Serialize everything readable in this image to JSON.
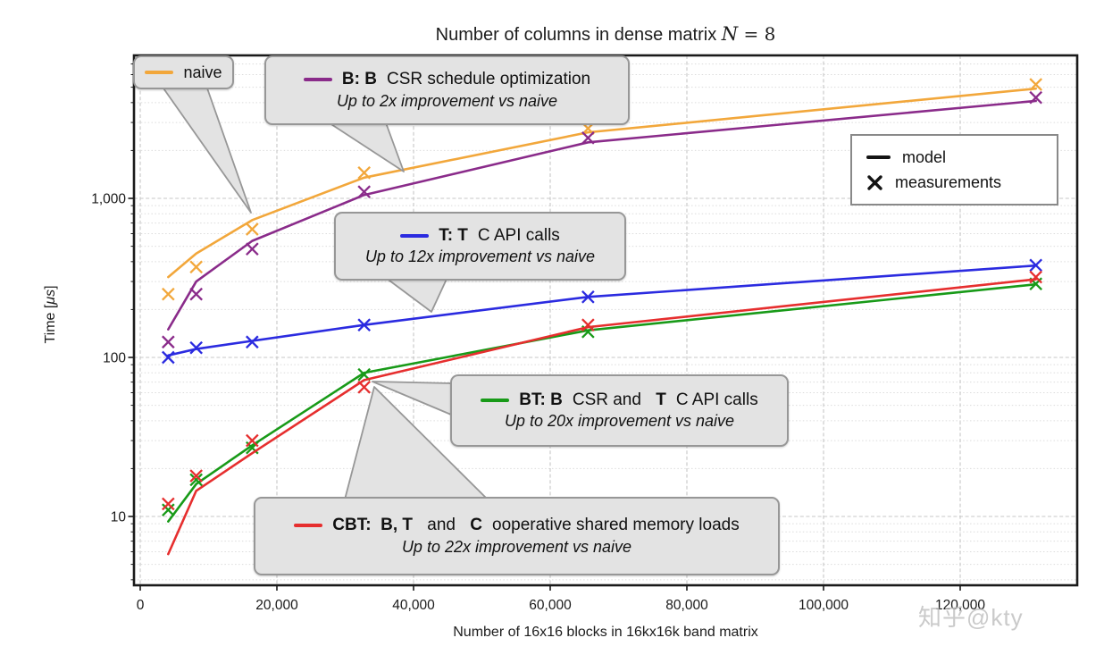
{
  "title": {
    "prefix": "Number of columns in dense matrix ",
    "var": "N",
    "suffix": " = 8"
  },
  "axes": {
    "x": {
      "label": "Number of 16x16 blocks in 16kx16k band matrix",
      "ticks": [
        {
          "value": 0,
          "label": "0"
        },
        {
          "value": 20000,
          "label": "20,000"
        },
        {
          "value": 40000,
          "label": "40,000"
        },
        {
          "value": 60000,
          "label": "60,000"
        },
        {
          "value": 80000,
          "label": "80,000"
        },
        {
          "value": 100000,
          "label": "100,000"
        },
        {
          "value": 120000,
          "label": "120,000"
        }
      ]
    },
    "y": {
      "label_prefix": "Time [",
      "label_unit": "μs",
      "label_suffix": "]",
      "scale": "log",
      "ticks": [
        {
          "value": 10,
          "label": "10"
        },
        {
          "value": 100,
          "label": "100"
        },
        {
          "value": 1000,
          "label": "1,000"
        }
      ]
    }
  },
  "legend": {
    "items": [
      {
        "symbol": "line",
        "label": "model"
      },
      {
        "symbol": "x",
        "label": "measurements"
      }
    ]
  },
  "chart_data": {
    "type": "line",
    "x_values": [
      4096,
      8192,
      16384,
      32768,
      65536,
      131072
    ],
    "xlabel": "Number of 16x16 blocks in 16kx16k band matrix",
    "ylabel": "Time [μs]",
    "yscale": "log",
    "xlim": [
      0,
      137500
    ],
    "ylim": [
      3.7,
      7800
    ],
    "grid": true,
    "series": [
      {
        "key": "naive",
        "label": "naive",
        "color": "#F2A73B",
        "model": [
          320,
          450,
          730,
          1350,
          2600,
          4900
        ],
        "measurements": [
          250,
          370,
          640,
          1450,
          2750,
          5200
        ]
      },
      {
        "key": "B",
        "label": "B: BCSR schedule optimization",
        "color": "#8A2B8A",
        "model": [
          150,
          300,
          540,
          1050,
          2250,
          4100
        ],
        "measurements": [
          125,
          250,
          480,
          1100,
          2400,
          4300
        ]
      },
      {
        "key": "T",
        "label": "T: TC API calls",
        "color": "#2B2BE0",
        "model": [
          103,
          113,
          127,
          160,
          240,
          378
        ],
        "measurements": [
          100,
          115,
          125,
          160,
          240,
          380
        ]
      },
      {
        "key": "BT",
        "label": "BT: BCSR and TC API calls",
        "color": "#189A18",
        "model": [
          9.3,
          16,
          28,
          80,
          148,
          288
        ],
        "measurements": [
          11,
          17,
          27,
          78,
          145,
          290
        ]
      },
      {
        "key": "CBT",
        "label": "CBT: B, T and Cooperative shared memory loads",
        "color": "#E62E2E",
        "model": [
          5.8,
          14.5,
          25,
          72,
          155,
          310
        ],
        "measurements": [
          12,
          18,
          30,
          65,
          160,
          320
        ]
      }
    ]
  },
  "callouts": [
    {
      "key": "naive",
      "color": "#F2A73B",
      "line1": [
        {
          "text": "naive",
          "bold": false
        }
      ],
      "line2": null
    },
    {
      "key": "B",
      "color": "#8A2B8A",
      "line1": [
        {
          "text": "B: B",
          "bold": true
        },
        {
          "text": "CSR schedule optimization",
          "bold": false
        }
      ],
      "line2": "Up to 2x improvement vs naive"
    },
    {
      "key": "T",
      "color": "#2B2BE0",
      "line1": [
        {
          "text": "T: T",
          "bold": true
        },
        {
          "text": "C API calls",
          "bold": false
        }
      ],
      "line2": "Up to 12x improvement vs naive"
    },
    {
      "key": "BT",
      "color": "#189A18",
      "line1": [
        {
          "text": "BT: B",
          "bold": true
        },
        {
          "text": "CSR and ",
          "bold": false
        },
        {
          "text": "T",
          "bold": true
        },
        {
          "text": "C API calls",
          "bold": false
        }
      ],
      "line2": "Up to 20x improvement vs naive"
    },
    {
      "key": "CBT",
      "color": "#E62E2E",
      "line1": [
        {
          "text": "CBT:  B, T",
          "bold": true
        },
        {
          "text": " and ",
          "bold": false
        },
        {
          "text": "C",
          "bold": true
        },
        {
          "text": "ooperative shared memory loads",
          "bold": false
        }
      ],
      "line2": "Up to 22x improvement vs naive"
    }
  ],
  "watermark": {
    "text": "知乎@kty",
    "color": "#bdbdbd"
  }
}
